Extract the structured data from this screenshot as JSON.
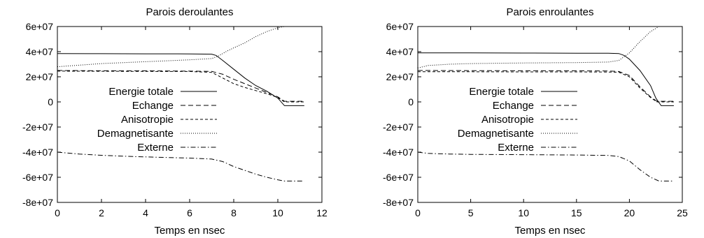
{
  "chart_data": [
    {
      "type": "line",
      "title": "Parois deroulantes",
      "xlabel": "Temps en nsec",
      "ylabel": "",
      "xlim": [
        0,
        12
      ],
      "ylim": [
        -80000000,
        60000000
      ],
      "xticks": [
        0,
        2,
        4,
        6,
        8,
        10,
        12
      ],
      "xtick_labels": [
        "0",
        "2",
        "4",
        "6",
        "8",
        "10",
        "12"
      ],
      "yticks": [
        60000000,
        40000000,
        20000000,
        0,
        -20000000,
        -40000000,
        -60000000,
        -80000000
      ],
      "ytick_labels": [
        "6e+07",
        "4e+07",
        "2e+07",
        "0",
        "-2e+07",
        "-4e+07",
        "-6e+07",
        "-8e+07"
      ],
      "grid": false,
      "legend_position": "center-left",
      "series": [
        {
          "name": "Energie totale",
          "dash": "solid",
          "x": [
            0,
            2,
            4,
            6,
            7,
            7.2,
            7.5,
            8,
            8.5,
            9,
            9.5,
            10,
            10.3,
            11.2
          ],
          "y": [
            38500000,
            38400000,
            38300000,
            38200000,
            38000000,
            37000000,
            33000000,
            26000000,
            19000000,
            13000000,
            8500000,
            3000000,
            -3000000,
            -3000000
          ]
        },
        {
          "name": "Echange",
          "dash": "long",
          "x": [
            0,
            2,
            4,
            6,
            7,
            7.5,
            8,
            8.5,
            9,
            9.5,
            10,
            10.3,
            11.2
          ],
          "y": [
            25000000,
            24800000,
            24700000,
            24500000,
            24300000,
            22000000,
            18000000,
            14500000,
            11000000,
            7500000,
            4000000,
            500000,
            500000
          ]
        },
        {
          "name": "Anisotropie",
          "dash": "short",
          "x": [
            0,
            2,
            4,
            6,
            7,
            7.5,
            8,
            8.5,
            9,
            9.5,
            10,
            10.3,
            11.2
          ],
          "y": [
            24500000,
            24400000,
            24300000,
            24200000,
            23500000,
            19000000,
            14500000,
            11500000,
            9000000,
            6500000,
            3500000,
            0,
            0
          ]
        },
        {
          "name": "Demagnetisante",
          "dash": "dotted",
          "x": [
            0,
            2,
            4,
            6,
            7,
            7.3,
            7.7,
            8,
            8.5,
            9,
            9.5,
            10,
            10.3,
            11.2
          ],
          "y": [
            28000000,
            30500000,
            32000000,
            33500000,
            34500000,
            36500000,
            40500000,
            43000000,
            47000000,
            52000000,
            56000000,
            59000000,
            60000000,
            60000000
          ]
        },
        {
          "name": "Externe",
          "dash": "dashdot",
          "x": [
            0,
            1,
            2,
            3,
            4,
            5,
            6,
            7,
            7.5,
            8,
            8.5,
            9,
            9.5,
            10,
            10.3,
            11.2
          ],
          "y": [
            -40000000,
            -41500000,
            -42500000,
            -43200000,
            -43800000,
            -44300000,
            -44700000,
            -45500000,
            -47500000,
            -51500000,
            -54500000,
            -57500000,
            -60000000,
            -62000000,
            -63000000,
            -63000000
          ]
        }
      ]
    },
    {
      "type": "line",
      "title": "Parois enroulantes",
      "xlabel": "Temps en nsec",
      "ylabel": "",
      "xlim": [
        0,
        25
      ],
      "ylim": [
        -80000000,
        60000000
      ],
      "xticks": [
        0,
        5,
        10,
        15,
        20,
        25
      ],
      "xtick_labels": [
        "0",
        "5",
        "10",
        "15",
        "20",
        "25"
      ],
      "yticks": [
        60000000,
        40000000,
        20000000,
        0,
        -20000000,
        -40000000,
        -60000000,
        -80000000
      ],
      "ytick_labels": [
        "6e+07",
        "4e+07",
        "2e+07",
        "0",
        "-2e+07",
        "-4e+07",
        "-6e+07",
        "-8e+07"
      ],
      "grid": false,
      "legend_position": "center-left",
      "series": [
        {
          "name": "Energie totale",
          "dash": "solid",
          "x": [
            0,
            5,
            10,
            15,
            18,
            19,
            19.5,
            20,
            21,
            22,
            22.5,
            23,
            24.2
          ],
          "y": [
            39000000,
            39000000,
            38900000,
            38800000,
            38700000,
            38500000,
            37000000,
            34000000,
            25000000,
            13000000,
            3000000,
            -3000000,
            -3000000
          ]
        },
        {
          "name": "Echange",
          "dash": "long",
          "x": [
            0,
            5,
            10,
            15,
            18,
            19,
            20,
            21,
            22,
            22.6,
            23,
            24.2
          ],
          "y": [
            25000000,
            24900000,
            24800000,
            24700000,
            24600000,
            24200000,
            21000000,
            12000000,
            4000000,
            500000,
            500000,
            500000
          ]
        },
        {
          "name": "Anisotropie",
          "dash": "short",
          "x": [
            0,
            5,
            10,
            15,
            18,
            19,
            20,
            21,
            22,
            22.6,
            23,
            24.2
          ],
          "y": [
            24000000,
            24000000,
            23900000,
            23900000,
            23800000,
            23600000,
            20000000,
            11000000,
            3500000,
            0,
            0,
            0
          ]
        },
        {
          "name": "Demagnetisante",
          "dash": "dotted",
          "x": [
            0,
            1,
            3,
            5,
            10,
            15,
            18,
            19,
            20,
            21,
            22,
            22.8,
            23,
            24.2
          ],
          "y": [
            27000000,
            29000000,
            30000000,
            30500000,
            31000000,
            31300000,
            31700000,
            33000000,
            39000000,
            48000000,
            56000000,
            60000000,
            60000000,
            60000000
          ]
        },
        {
          "name": "Externe",
          "dash": "dashdot",
          "x": [
            0,
            1,
            3,
            5,
            10,
            15,
            18,
            19,
            20,
            21,
            22,
            22.8,
            23,
            24.2
          ],
          "y": [
            -40000000,
            -41000000,
            -41500000,
            -41800000,
            -42000000,
            -42300000,
            -42600000,
            -43500000,
            -47000000,
            -54000000,
            -60000000,
            -63000000,
            -63000000,
            -63000000
          ]
        }
      ]
    }
  ]
}
